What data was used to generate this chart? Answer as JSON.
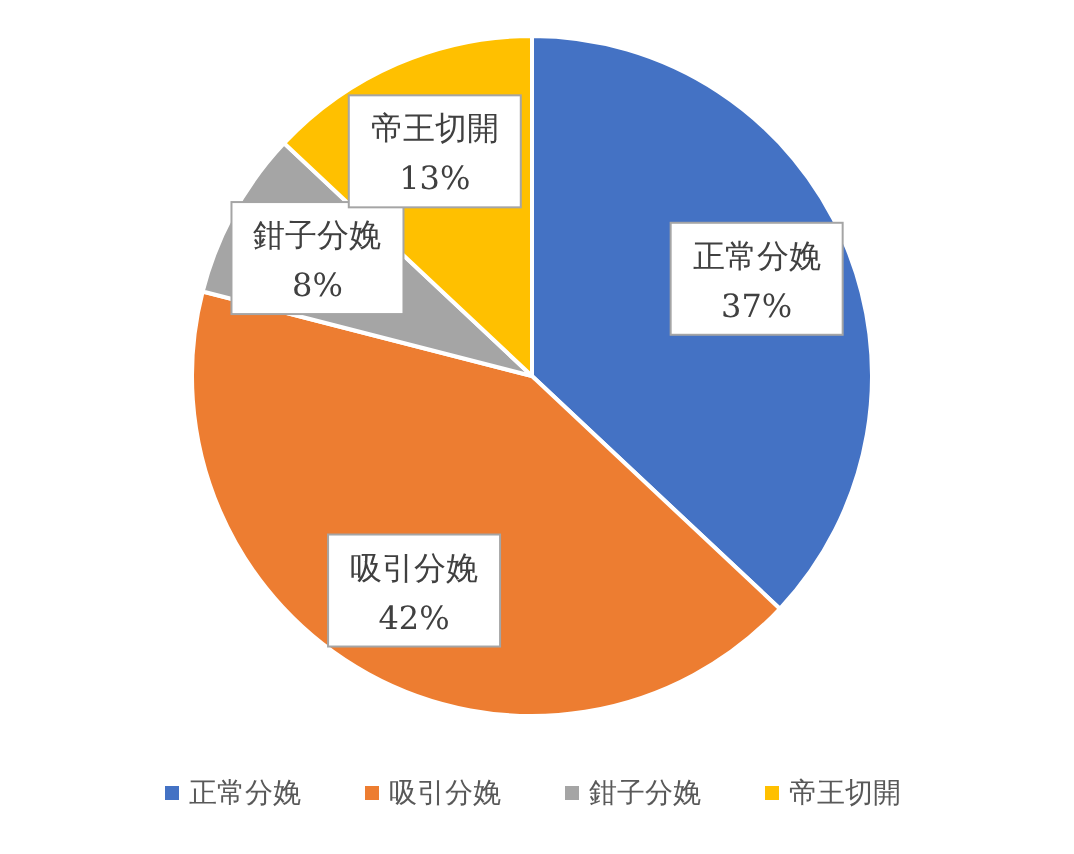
{
  "chart_data": {
    "type": "pie",
    "categories": [
      "正常分娩",
      "吸引分娩",
      "鉗子分娩",
      "帝王切開"
    ],
    "values": [
      37,
      42,
      8,
      13
    ],
    "colors": [
      "#4472c4",
      "#ed7d31",
      "#a5a5a5",
      "#ffc000"
    ],
    "value_labels": [
      "37%",
      "42%",
      "8%",
      "13%"
    ],
    "legend": "bottom"
  }
}
